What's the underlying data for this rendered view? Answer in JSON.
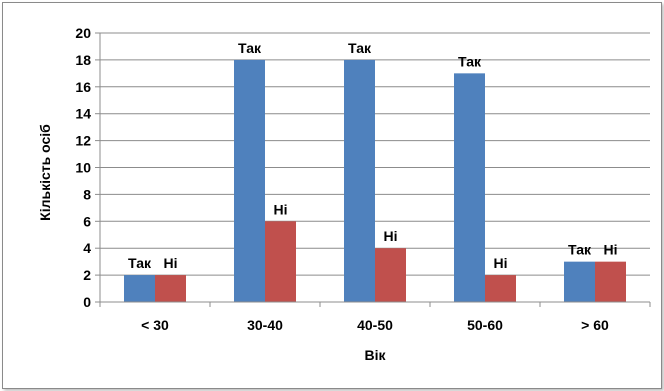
{
  "chart_data": {
    "type": "bar",
    "categories": [
      "< 30",
      "30-40",
      "40-50",
      "50-60",
      "> 60"
    ],
    "series": [
      {
        "name": "Так",
        "values": [
          2,
          18,
          18,
          17,
          3
        ],
        "color": "#4f81bd",
        "data_labels": [
          "Так",
          "Так",
          "Так",
          "Так",
          "Так"
        ]
      },
      {
        "name": "Ні",
        "values": [
          2,
          6,
          4,
          2,
          3
        ],
        "color": "#c0504d",
        "data_labels": [
          "Ні",
          "Ні",
          "Ні",
          "Ні",
          "Ні"
        ]
      }
    ],
    "xlabel": "Вік",
    "ylabel": "Кількість осіб",
    "ylim": [
      0,
      20
    ],
    "yticks": [
      "0",
      "2",
      "4",
      "6",
      "8",
      "10",
      "12",
      "14",
      "16",
      "18",
      "20"
    ],
    "grid": true,
    "legend": "none"
  }
}
